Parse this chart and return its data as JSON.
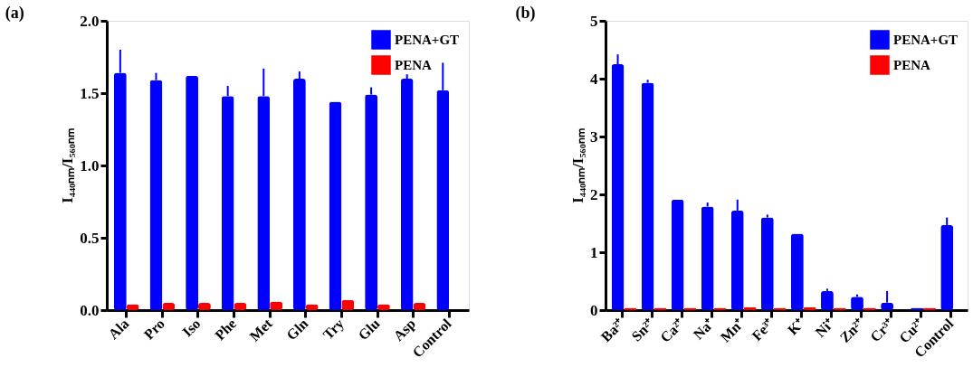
{
  "chart_data": [
    {
      "type": "bar",
      "title": "(a)",
      "ylabel": "I₄₄₀ₙₘ/I₅₆₀ₙₘ",
      "categories": [
        "Ala",
        "Pro",
        "Iso",
        "Phe",
        "Met",
        "Gln",
        "Try",
        "Glu",
        "Asp",
        "Control"
      ],
      "series": [
        {
          "name": "PENA+GT",
          "color": "#0000ff",
          "values": [
            1.64,
            1.59,
            1.62,
            1.48,
            1.48,
            1.6,
            1.44,
            1.49,
            1.6,
            1.52
          ],
          "errors": [
            [
              1.64,
              1.8
            ],
            [
              1.59,
              1.64
            ],
            null,
            [
              1.48,
              1.55
            ],
            [
              1.48,
              1.67
            ],
            [
              1.6,
              1.65
            ],
            null,
            [
              1.49,
              1.54
            ],
            [
              1.6,
              1.63
            ],
            [
              1.52,
              1.71
            ]
          ]
        },
        {
          "name": "PENA",
          "color": "#ff0000",
          "values": [
            0.04,
            0.05,
            0.05,
            0.05,
            0.06,
            0.04,
            0.07,
            0.04,
            0.05,
            null
          ]
        }
      ],
      "ylim": [
        0,
        2
      ],
      "yticks": [
        {
          "value": 0,
          "label": "0.0"
        },
        0.5,
        {
          "value": 1,
          "label": "1.0"
        },
        1.5,
        {
          "value": 2,
          "label": "2.0"
        }
      ],
      "legend": "top right",
      "grid": false
    },
    {
      "type": "bar",
      "title": "(b)",
      "ylabel": "I₄₄₀ₙₘ/I₅₆₀ₙₘ",
      "categories": [
        "Ba²⁺",
        "Sn²⁺",
        "Ca²⁺",
        "Na⁺",
        "Mn⁺",
        "Fe³⁺",
        "K⁺",
        "Ni⁺",
        "Zn²⁺",
        "Cr³⁺",
        "Cu²⁺",
        "Control"
      ],
      "series": [
        {
          "name": "PENA+GT",
          "color": "#0000ff",
          "values": [
            4.25,
            3.93,
            1.91,
            1.79,
            1.72,
            1.6,
            1.32,
            0.33,
            0.23,
            0.13,
            0.04,
            1.47
          ],
          "errors": [
            [
              4.25,
              4.42
            ],
            [
              3.93,
              3.98
            ],
            null,
            [
              1.79,
              1.86
            ],
            [
              1.72,
              1.91
            ],
            [
              1.6,
              1.65
            ],
            null,
            [
              0.33,
              0.37
            ],
            [
              0.23,
              0.27
            ],
            [
              0.13,
              0.33
            ],
            null,
            [
              1.47,
              1.6
            ]
          ]
        },
        {
          "name": "PENA",
          "color": "#ff0000",
          "values": [
            0.04,
            0.04,
            0.04,
            0.04,
            0.05,
            0.04,
            0.05,
            0.04,
            0.04,
            null,
            0.04,
            null
          ]
        }
      ],
      "ylim": [
        0,
        5
      ],
      "yticks": [
        0,
        1,
        2,
        3,
        4,
        5
      ],
      "legend": "top right",
      "grid": false
    }
  ]
}
